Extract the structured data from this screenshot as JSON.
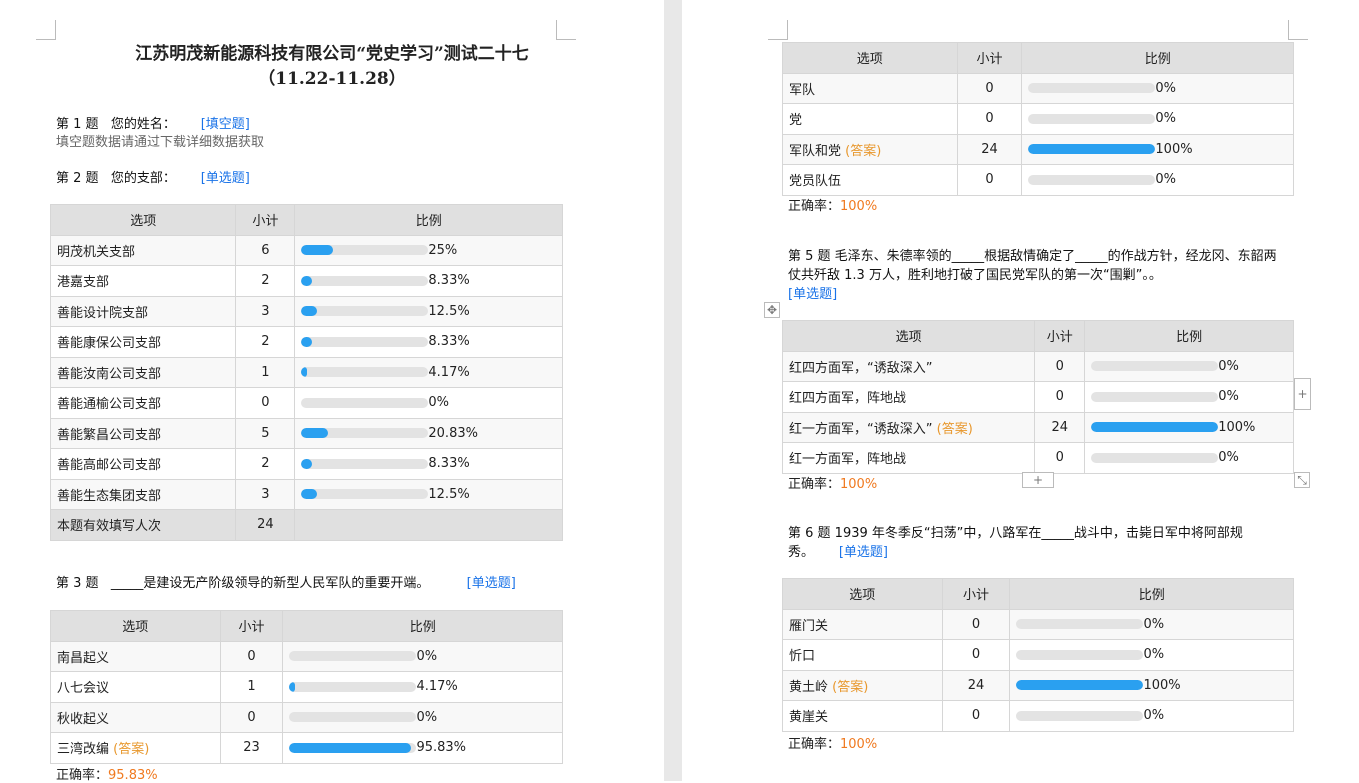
{
  "title": "江苏明茂新能源科技有限公司“党史学习”测试二十七",
  "subtitle": "（11.22-11.28）",
  "headers": {
    "option": "选项",
    "count": "小计",
    "ratio": "比例"
  },
  "q1": {
    "label": "第 1 题   您的姓名：",
    "tag": "[填空题]",
    "note": "填空题数据请通过下载详细数据获取"
  },
  "q2": {
    "label": "第 2 题   您的支部：",
    "tag": "[单选题]",
    "rows": [
      {
        "option": "明茂机关支部",
        "count": "6",
        "pct": "25%",
        "value": 25
      },
      {
        "option": "港嘉支部",
        "count": "2",
        "pct": "8.33%",
        "value": 8.33
      },
      {
        "option": "善能设计院支部",
        "count": "3",
        "pct": "12.5%",
        "value": 12.5
      },
      {
        "option": "善能康保公司支部",
        "count": "2",
        "pct": "8.33%",
        "value": 8.33
      },
      {
        "option": "善能汝南公司支部",
        "count": "1",
        "pct": "4.17%",
        "value": 4.17
      },
      {
        "option": "善能通榆公司支部",
        "count": "0",
        "pct": "0%",
        "value": 0
      },
      {
        "option": "善能繁昌公司支部",
        "count": "5",
        "pct": "20.83%",
        "value": 20.83
      },
      {
        "option": "善能高邮公司支部",
        "count": "2",
        "pct": "8.33%",
        "value": 8.33
      },
      {
        "option": "善能生态集团支部",
        "count": "3",
        "pct": "12.5%",
        "value": 12.5
      }
    ],
    "total_label": "本题有效填写人次",
    "total": "24"
  },
  "q3": {
    "label": "第 3 题   _____是建设无产阶级领导的新型人民军队的重要开端。",
    "tag": "[单选题]",
    "rows": [
      {
        "option": "南昌起义",
        "count": "0",
        "pct": "0%",
        "value": 0
      },
      {
        "option": "八七会议",
        "count": "1",
        "pct": "4.17%",
        "value": 4.17
      },
      {
        "option": "秋收起义",
        "count": "0",
        "pct": "0%",
        "value": 0
      },
      {
        "option": "三湾改编",
        "answer": "(答案)",
        "count": "23",
        "pct": "95.83%",
        "value": 95.83
      }
    ],
    "accuracy_label": "正确率：",
    "accuracy": "95.83%"
  },
  "q4": {
    "rows": [
      {
        "option": "军队",
        "count": "0",
        "pct": "0%",
        "value": 0
      },
      {
        "option": "党",
        "count": "0",
        "pct": "0%",
        "value": 0
      },
      {
        "option": "军队和党",
        "answer": "(答案)",
        "count": "24",
        "pct": "100%",
        "value": 100
      },
      {
        "option": "党员队伍",
        "count": "0",
        "pct": "0%",
        "value": 0
      }
    ],
    "accuracy_label": "正确率：",
    "accuracy": "100%"
  },
  "q5": {
    "label": "第 5 题   毛泽东、朱德率领的_____根据敌情确定了_____的作战方针，经龙冈、东韶两仗共歼敌 1.3 万人，胜利地打破了国民党军队的第一次“围剿”。。",
    "tag": "[单选题]",
    "rows": [
      {
        "option": "红四方面军，“诱敌深入”",
        "count": "0",
        "pct": "0%",
        "value": 0
      },
      {
        "option": "红四方面军，阵地战",
        "count": "0",
        "pct": "0%",
        "value": 0
      },
      {
        "option": "红一方面军，“诱敌深入”",
        "answer": "(答案)",
        "count": "24",
        "pct": "100%",
        "value": 100
      },
      {
        "option": "红一方面军，阵地战",
        "count": "0",
        "pct": "0%",
        "value": 0
      }
    ],
    "accuracy_label": "正确率：",
    "accuracy": "100%"
  },
  "q6": {
    "label": "第 6 题   1939 年冬季反“扫荡”中，八路军在_____战斗中，击毙日军中将阿部规秀。",
    "tag": "[单选题]",
    "rows": [
      {
        "option": "雁门关",
        "count": "0",
        "pct": "0%",
        "value": 0
      },
      {
        "option": "忻口",
        "count": "0",
        "pct": "0%",
        "value": 0
      },
      {
        "option": "黄土岭",
        "answer": "(答案)",
        "count": "24",
        "pct": "100%",
        "value": 100
      },
      {
        "option": "黄崖关",
        "count": "0",
        "pct": "0%",
        "value": 0
      }
    ],
    "accuracy_label": "正确率：",
    "accuracy": "100%"
  },
  "colors": {
    "bar_fill": "#2aa0f0",
    "bar_track": "#e3e3e3",
    "tag": "#1a73e8",
    "answer": "#e8982e",
    "accuracy": "#f07a20"
  }
}
